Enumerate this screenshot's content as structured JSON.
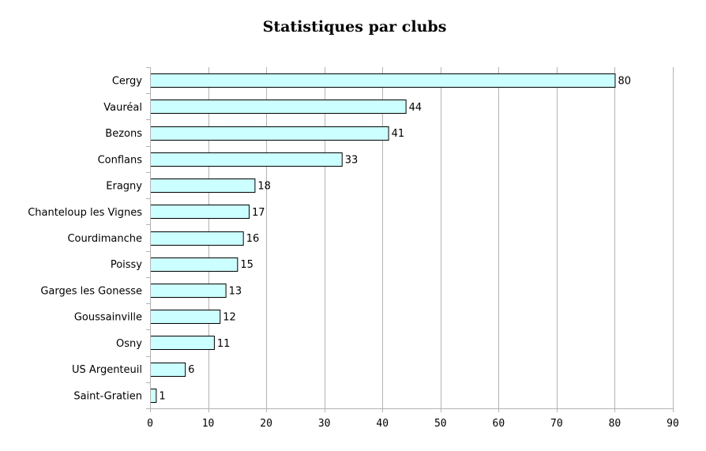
{
  "chart_data": {
    "type": "bar",
    "orientation": "horizontal",
    "title": "Statistiques par clubs",
    "xlabel": "",
    "ylabel": "",
    "categories": [
      "Cergy",
      "Vauréal",
      "Bezons",
      "Conflans",
      "Eragny",
      "Chanteloup les Vignes",
      "Courdimanche",
      "Poissy",
      "Garges les Gonesse",
      "Goussainville",
      "Osny",
      "US Argenteuil",
      "Saint-Gratien"
    ],
    "values": [
      80,
      44,
      41,
      33,
      18,
      17,
      16,
      15,
      13,
      12,
      11,
      6,
      1
    ],
    "xlim": [
      0,
      90
    ],
    "xticks": [
      0,
      10,
      20,
      30,
      40,
      50,
      60,
      70,
      80,
      90
    ],
    "grid": "vertical",
    "legend": "none",
    "data_labels": true,
    "bar_color": "#ccffff",
    "bar_edge_color": "#000000",
    "grid_color": "#b3b3b3"
  }
}
